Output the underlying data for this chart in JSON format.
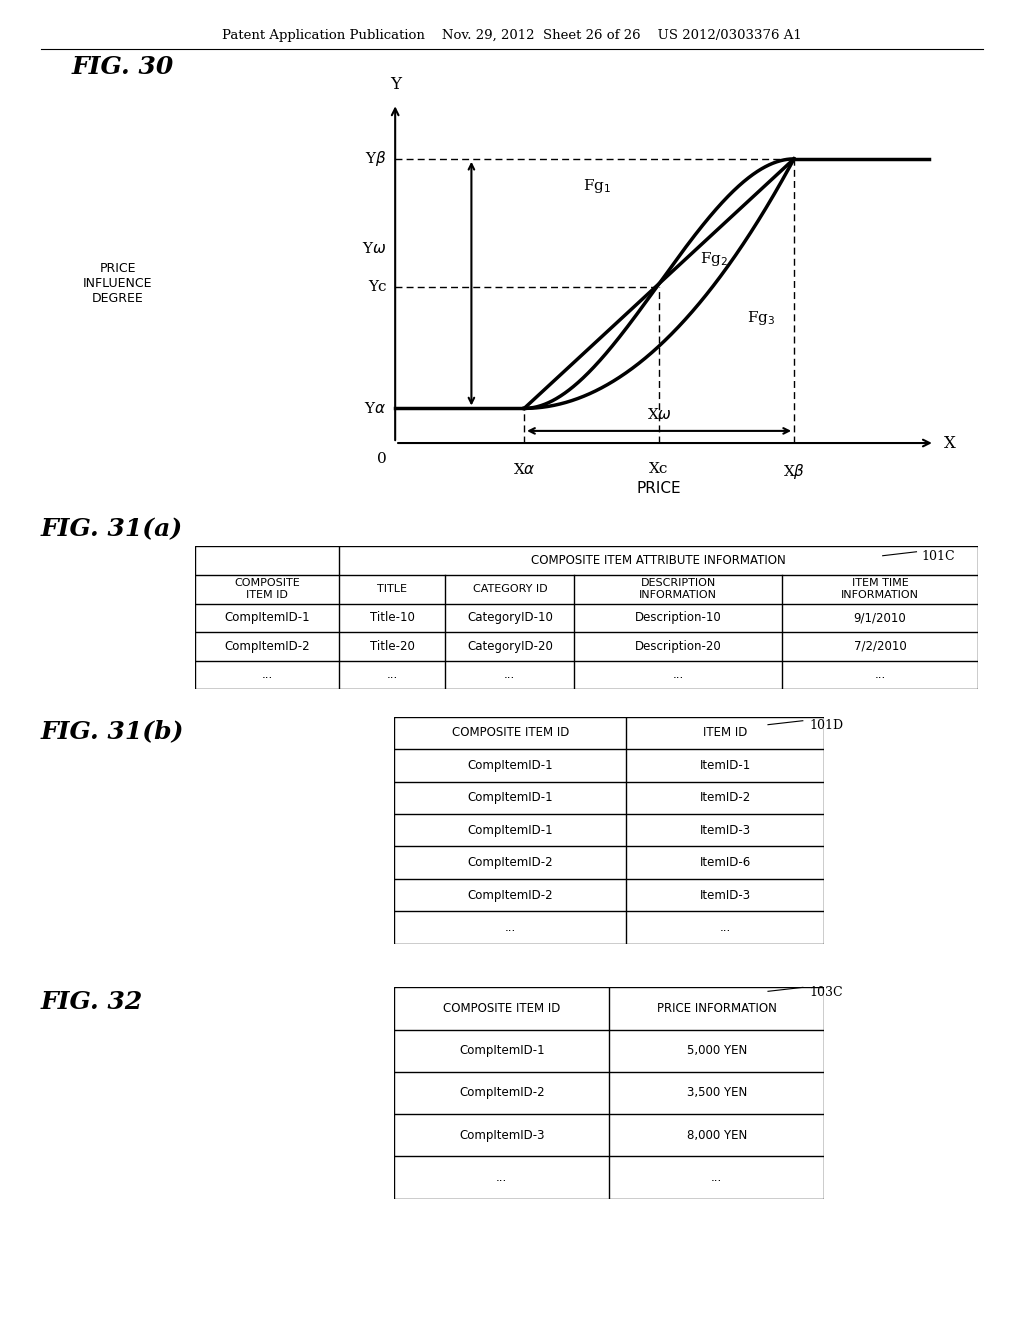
{
  "header_text": "Patent Application Publication    Nov. 29, 2012  Sheet 26 of 26    US 2012/0303376 A1",
  "fig30_title": "FIG. 30",
  "fig31a_title": "FIG. 31(a)",
  "fig31b_title": "FIG. 31(b)",
  "fig32_title": "FIG. 32",
  "label_101C": "101C",
  "label_101D": "101D",
  "label_103C": "103C",
  "price_influence": "PRICE\nINFLUENCE\nDEGREE",
  "price_label": "PRICE",
  "x_axis_label": "X",
  "y_axis_label": "Y",
  "bg_color": "#ffffff",
  "table31a_rows": [
    [
      "CompItemID-1",
      "Title-10",
      "CategoryID-10",
      "Description-10",
      "9/1/2010"
    ],
    [
      "CompItemID-2",
      "Title-20",
      "CategoryID-20",
      "Description-20",
      "7/2/2010"
    ],
    [
      "...",
      "...",
      "...",
      "...",
      "..."
    ]
  ],
  "table31b_rows": [
    [
      "CompItemID-1",
      "ItemID-1"
    ],
    [
      "CompItemID-1",
      "ItemID-2"
    ],
    [
      "CompItemID-1",
      "ItemID-3"
    ],
    [
      "CompItemID-2",
      "ItemID-6"
    ],
    [
      "CompItemID-2",
      "ItemID-3"
    ],
    [
      "...",
      "..."
    ]
  ],
  "table32_rows": [
    [
      "CompItemID-1",
      "5,000 YEN"
    ],
    [
      "CompItemID-2",
      "3,500 YEN"
    ],
    [
      "CompItemID-3",
      "8,000 YEN"
    ],
    [
      "...",
      "..."
    ]
  ]
}
